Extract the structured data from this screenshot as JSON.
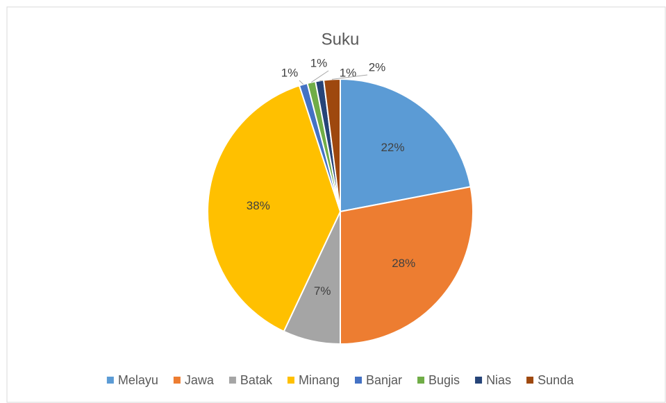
{
  "chart_data": {
    "type": "pie",
    "title": "Suku",
    "categories": [
      "Melayu",
      "Jawa",
      "Batak",
      "Minang",
      "Banjar",
      "Bugis",
      "Nias",
      "Sunda"
    ],
    "values": [
      22,
      28,
      7,
      38,
      1,
      1,
      1,
      2
    ],
    "value_labels": [
      "22%",
      "28%",
      "7%",
      "38%",
      "1%",
      "1%",
      "1%",
      "2%"
    ],
    "colors": [
      "#5b9bd5",
      "#ed7d31",
      "#a5a5a5",
      "#ffc000",
      "#4472c4",
      "#70ad47",
      "#264478",
      "#9e480e"
    ],
    "legend": "bottom"
  }
}
